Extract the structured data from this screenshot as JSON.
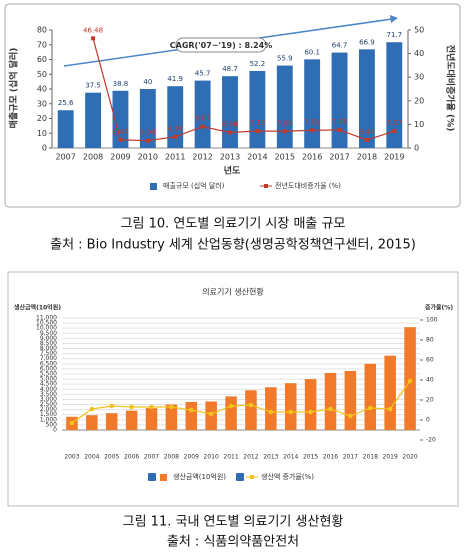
{
  "chart_data": [
    {
      "type": "combo",
      "annotation": "CAGR('07~'19) : 8.24%",
      "xlabel": "년도",
      "ylabel": "매출규모 (십억 달러)",
      "y2label": "전년도대비증가율 (%)",
      "categories": [
        "2007",
        "2008",
        "2009",
        "2010",
        "2011",
        "2012",
        "2013",
        "2014",
        "2015",
        "2016",
        "2017",
        "2018",
        "2019"
      ],
      "series": [
        {
          "name": "매출규모 (십억 달러)",
          "type": "bar",
          "color": "#2f6db5",
          "values": [
            25.6,
            37.5,
            38.8,
            40,
            41.9,
            45.7,
            48.7,
            52.2,
            55.9,
            60.1,
            64.7,
            66.9,
            71.7
          ],
          "value_labels": [
            "25.6",
            "37.5",
            "38.8",
            "40",
            "41.9",
            "45.7",
            "48.7",
            "52.2",
            "55.9",
            "60.1",
            "64.7",
            "66.9",
            "71.7"
          ]
        },
        {
          "name": "전년도대비증가율 (%)",
          "type": "line",
          "axis": "y2",
          "color": "#c0392b",
          "marker": "square",
          "values": [
            null,
            46.48,
            3.47,
            3.09,
            4.76,
            9.07,
            6.56,
            7.19,
            7.09,
            7.51,
            7.65,
            3.4,
            7.17
          ],
          "value_labels": [
            null,
            "46.48",
            "3.47",
            "3.09",
            "4.76",
            "9.07",
            "6.56",
            "7.19",
            "7.09",
            "7.51",
            "7.65",
            "3.40",
            "7.17"
          ]
        }
      ],
      "ylim": [
        0,
        80
      ],
      "yticks": [
        0,
        10,
        20,
        30,
        40,
        50,
        60,
        70,
        80
      ],
      "y2lim": [
        0,
        50
      ],
      "y2ticks": [
        0,
        10,
        20,
        30,
        40,
        50
      ],
      "grid": false
    },
    {
      "type": "combo",
      "title": "의료기기 생산현황",
      "ylabel": "생산금액(10억원)",
      "y2label": "증가율(%)",
      "categories": [
        "2003",
        "2004",
        "2005",
        "2006",
        "2007",
        "2008",
        "2009",
        "2010",
        "2011",
        "2012",
        "2013",
        "2014",
        "2015",
        "2016",
        "2017",
        "2018",
        "2019",
        "2020"
      ],
      "series": [
        {
          "name": "생산금액(10억원)",
          "type": "bar",
          "color": "#f07a2a",
          "values": [
            1300,
            1450,
            1650,
            1900,
            2150,
            2500,
            2750,
            2800,
            3300,
            3900,
            4200,
            4600,
            5000,
            5600,
            5800,
            6500,
            7300,
            10100
          ]
        },
        {
          "name": "생산액 증가율(%)",
          "type": "line",
          "axis": "y2",
          "color": "#f2c31a",
          "marker": "circle",
          "values": [
            -3,
            11,
            14,
            13,
            13,
            13,
            10,
            6,
            14,
            15,
            8,
            8,
            8,
            11,
            4,
            12,
            11,
            39
          ]
        }
      ],
      "ylim": [
        0,
        11000
      ],
      "yticks": [
        0,
        500,
        {
          "value": 1000,
          "label": "1,000"
        },
        {
          "value": 1500,
          "label": "1,500"
        },
        {
          "value": 2000,
          "label": "2,000"
        },
        {
          "value": 2500,
          "label": "2,500"
        },
        {
          "value": 3000,
          "label": "3,000"
        },
        {
          "value": 3500,
          "label": "3,500"
        },
        {
          "value": 4000,
          "label": "4,000"
        },
        {
          "value": 4500,
          "label": "4,500"
        },
        {
          "value": 5000,
          "label": "5,000"
        },
        {
          "value": 5500,
          "label": "5,500"
        },
        {
          "value": 6000,
          "label": "6,000"
        },
        {
          "value": 6500,
          "label": "6,500"
        },
        {
          "value": 7000,
          "label": "7,000"
        },
        {
          "value": 7500,
          "label": "7,500"
        },
        {
          "value": 8000,
          "label": "8,000"
        },
        {
          "value": 8500,
          "label": "8,500"
        },
        {
          "value": 9000,
          "label": "9,000"
        },
        {
          "value": 9500,
          "label": "9,500"
        },
        {
          "value": 10000,
          "label": "10,000"
        },
        {
          "value": 10500,
          "label": "10,500"
        },
        {
          "value": 11000,
          "label": "11,000"
        }
      ],
      "y2lim": [
        -20,
        100
      ],
      "y2ticks": [
        -20,
        0,
        20,
        40,
        60,
        80,
        100
      ],
      "grid": true
    }
  ],
  "captions": [
    "그림 10. 연도별 의료기기 시장 매출 규모",
    "출처 : Bio Industry 세계 산업동향(생명공학정책연구센터, 2015)",
    "그림 11. 국내 연도별 의료기기 생산현황",
    "출처 : 식품의약품안전처"
  ]
}
